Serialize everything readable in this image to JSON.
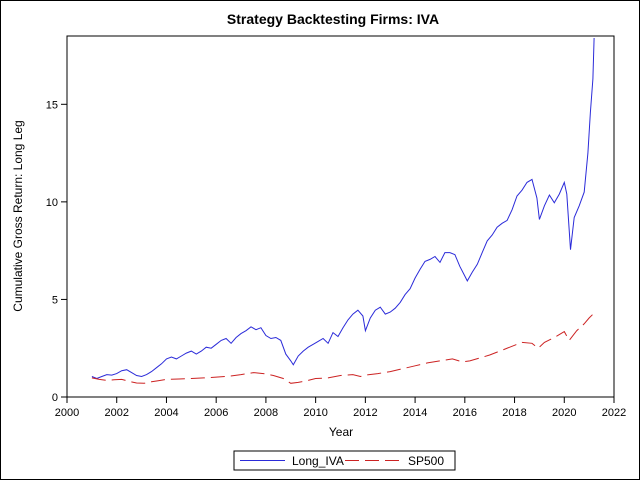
{
  "chart_data": {
    "type": "line",
    "title": "Strategy Backtesting  Firms: IVA",
    "xlabel": "Year",
    "ylabel": "Cumulative Gross Return: Long Leg",
    "xlim": [
      2000,
      2022
    ],
    "ylim": [
      0,
      18.5
    ],
    "xticks": [
      "2000",
      "2002",
      "2004",
      "2006",
      "2008",
      "2010",
      "2012",
      "2014",
      "2016",
      "2018",
      "2020",
      "2022"
    ],
    "yticks": [
      "0",
      "5",
      "10",
      "15"
    ],
    "grid": false,
    "legend_position": "bottom",
    "series": [
      {
        "name": "Long_IVA",
        "color": "#2b2bd9",
        "dash": "solid",
        "points": [
          [
            2001.0,
            1.05
          ],
          [
            2001.2,
            0.95
          ],
          [
            2001.4,
            1.05
          ],
          [
            2001.6,
            1.15
          ],
          [
            2001.8,
            1.12
          ],
          [
            2002.0,
            1.2
          ],
          [
            2002.2,
            1.35
          ],
          [
            2002.4,
            1.4
          ],
          [
            2002.6,
            1.25
          ],
          [
            2002.8,
            1.1
          ],
          [
            2003.0,
            1.05
          ],
          [
            2003.2,
            1.15
          ],
          [
            2003.4,
            1.3
          ],
          [
            2003.6,
            1.5
          ],
          [
            2003.8,
            1.7
          ],
          [
            2004.0,
            1.95
          ],
          [
            2004.2,
            2.05
          ],
          [
            2004.4,
            1.95
          ],
          [
            2004.6,
            2.1
          ],
          [
            2004.8,
            2.25
          ],
          [
            2005.0,
            2.35
          ],
          [
            2005.2,
            2.2
          ],
          [
            2005.4,
            2.35
          ],
          [
            2005.6,
            2.55
          ],
          [
            2005.8,
            2.5
          ],
          [
            2006.0,
            2.7
          ],
          [
            2006.2,
            2.9
          ],
          [
            2006.4,
            3.0
          ],
          [
            2006.6,
            2.75
          ],
          [
            2006.8,
            3.05
          ],
          [
            2007.0,
            3.25
          ],
          [
            2007.2,
            3.4
          ],
          [
            2007.4,
            3.6
          ],
          [
            2007.6,
            3.45
          ],
          [
            2007.8,
            3.55
          ],
          [
            2008.0,
            3.15
          ],
          [
            2008.2,
            3.0
          ],
          [
            2008.4,
            3.05
          ],
          [
            2008.6,
            2.9
          ],
          [
            2008.8,
            2.2
          ],
          [
            2009.0,
            1.85
          ],
          [
            2009.1,
            1.65
          ],
          [
            2009.3,
            2.1
          ],
          [
            2009.5,
            2.35
          ],
          [
            2009.7,
            2.55
          ],
          [
            2009.9,
            2.7
          ],
          [
            2010.1,
            2.85
          ],
          [
            2010.3,
            3.0
          ],
          [
            2010.5,
            2.75
          ],
          [
            2010.7,
            3.3
          ],
          [
            2010.9,
            3.1
          ],
          [
            2011.1,
            3.55
          ],
          [
            2011.3,
            3.95
          ],
          [
            2011.5,
            4.25
          ],
          [
            2011.7,
            4.45
          ],
          [
            2011.9,
            4.15
          ],
          [
            2012.0,
            3.4
          ],
          [
            2012.2,
            4.05
          ],
          [
            2012.4,
            4.45
          ],
          [
            2012.6,
            4.6
          ],
          [
            2012.8,
            4.25
          ],
          [
            2013.0,
            4.35
          ],
          [
            2013.2,
            4.55
          ],
          [
            2013.4,
            4.85
          ],
          [
            2013.6,
            5.25
          ],
          [
            2013.8,
            5.55
          ],
          [
            2014.0,
            6.1
          ],
          [
            2014.2,
            6.55
          ],
          [
            2014.4,
            6.95
          ],
          [
            2014.6,
            7.05
          ],
          [
            2014.8,
            7.2
          ],
          [
            2015.0,
            6.9
          ],
          [
            2015.2,
            7.4
          ],
          [
            2015.4,
            7.4
          ],
          [
            2015.6,
            7.3
          ],
          [
            2015.8,
            6.7
          ],
          [
            2016.0,
            6.2
          ],
          [
            2016.1,
            5.95
          ],
          [
            2016.3,
            6.4
          ],
          [
            2016.5,
            6.8
          ],
          [
            2016.7,
            7.4
          ],
          [
            2016.9,
            8.0
          ],
          [
            2017.1,
            8.3
          ],
          [
            2017.3,
            8.7
          ],
          [
            2017.5,
            8.9
          ],
          [
            2017.7,
            9.05
          ],
          [
            2017.9,
            9.6
          ],
          [
            2018.1,
            10.3
          ],
          [
            2018.3,
            10.6
          ],
          [
            2018.5,
            11.0
          ],
          [
            2018.7,
            11.15
          ],
          [
            2018.9,
            10.2
          ],
          [
            2019.0,
            9.1
          ],
          [
            2019.2,
            9.8
          ],
          [
            2019.4,
            10.35
          ],
          [
            2019.6,
            9.95
          ],
          [
            2019.8,
            10.4
          ],
          [
            2020.0,
            11.0
          ],
          [
            2020.1,
            10.4
          ],
          [
            2020.25,
            7.55
          ],
          [
            2020.4,
            9.2
          ],
          [
            2020.6,
            9.8
          ],
          [
            2020.8,
            10.5
          ],
          [
            2020.95,
            12.5
          ],
          [
            2021.05,
            14.6
          ],
          [
            2021.15,
            16.3
          ],
          [
            2021.2,
            18.4
          ]
        ]
      },
      {
        "name": "SP500",
        "color": "#cc2222",
        "dash": "long-dash",
        "points": [
          [
            2001.0,
            0.98
          ],
          [
            2001.3,
            0.9
          ],
          [
            2001.6,
            0.85
          ],
          [
            2001.9,
            0.88
          ],
          [
            2002.2,
            0.9
          ],
          [
            2002.5,
            0.8
          ],
          [
            2002.8,
            0.72
          ],
          [
            2003.1,
            0.7
          ],
          [
            2003.4,
            0.78
          ],
          [
            2003.7,
            0.84
          ],
          [
            2004.0,
            0.9
          ],
          [
            2004.5,
            0.92
          ],
          [
            2005.0,
            0.95
          ],
          [
            2005.5,
            0.98
          ],
          [
            2006.0,
            1.02
          ],
          [
            2006.5,
            1.06
          ],
          [
            2007.0,
            1.15
          ],
          [
            2007.5,
            1.25
          ],
          [
            2007.9,
            1.2
          ],
          [
            2008.3,
            1.1
          ],
          [
            2008.7,
            0.95
          ],
          [
            2009.0,
            0.7
          ],
          [
            2009.3,
            0.75
          ],
          [
            2009.7,
            0.85
          ],
          [
            2010.0,
            0.95
          ],
          [
            2010.5,
            0.98
          ],
          [
            2011.0,
            1.1
          ],
          [
            2011.5,
            1.15
          ],
          [
            2011.8,
            1.05
          ],
          [
            2012.0,
            1.12
          ],
          [
            2012.5,
            1.2
          ],
          [
            2013.0,
            1.3
          ],
          [
            2013.5,
            1.45
          ],
          [
            2014.0,
            1.6
          ],
          [
            2014.5,
            1.75
          ],
          [
            2015.0,
            1.85
          ],
          [
            2015.5,
            1.95
          ],
          [
            2015.9,
            1.8
          ],
          [
            2016.2,
            1.85
          ],
          [
            2016.6,
            2.0
          ],
          [
            2017.0,
            2.15
          ],
          [
            2017.5,
            2.4
          ],
          [
            2018.0,
            2.65
          ],
          [
            2018.3,
            2.8
          ],
          [
            2018.7,
            2.75
          ],
          [
            2018.95,
            2.5
          ],
          [
            2019.2,
            2.8
          ],
          [
            2019.6,
            3.05
          ],
          [
            2020.0,
            3.35
          ],
          [
            2020.2,
            2.9
          ],
          [
            2020.5,
            3.4
          ],
          [
            2020.8,
            3.75
          ],
          [
            2021.0,
            4.05
          ],
          [
            2021.2,
            4.3
          ]
        ]
      }
    ]
  }
}
